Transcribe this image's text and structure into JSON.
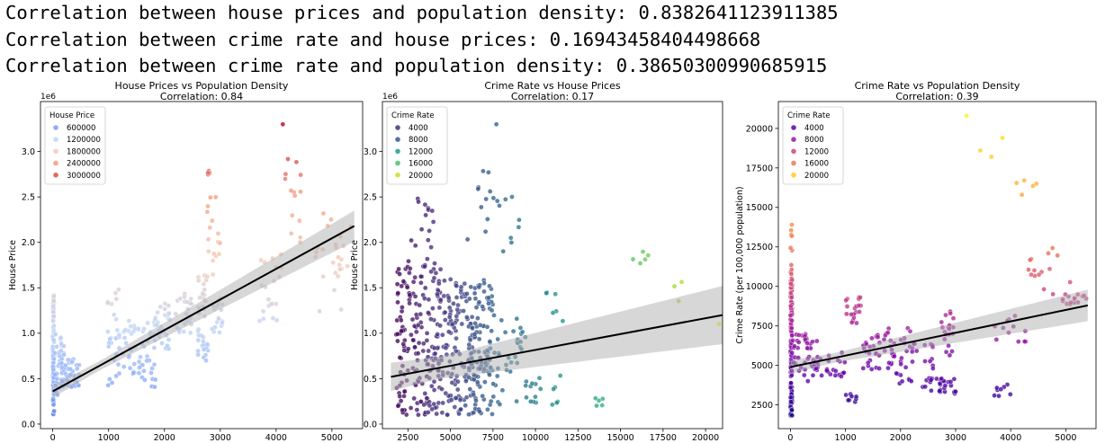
{
  "output_lines": [
    "Correlation between house prices and population density: 0.8382641123911385",
    "Correlation between crime rate and house prices: 0.16943458404498668",
    "Correlation between crime rate and population density: 0.38650300990685915"
  ],
  "chart_data": [
    {
      "type": "scatter",
      "title": "House Prices vs Population Density",
      "subtitle": "Correlation: 0.84",
      "xlabel": "",
      "ylabel": "House Price",
      "offset_text": "1e6",
      "xlim": [
        -220,
        5550
      ],
      "ylim": [
        -0.05,
        3.55
      ],
      "xticks": [
        0,
        1000,
        2000,
        3000,
        4000,
        5000
      ],
      "xtick_labels": [
        "0",
        "1000",
        "2000",
        "3000",
        "4000",
        "5000"
      ],
      "yticks": [
        0.0,
        0.5,
        1.0,
        1.5,
        2.0,
        2.5,
        3.0
      ],
      "ytick_labels": [
        "0.0",
        "0.5",
        "1.0",
        "1.5",
        "2.0",
        "2.5",
        "3.0"
      ],
      "hue_variable": "house_price",
      "palette": "coolwarm",
      "legend": {
        "title": "House Price",
        "position": "upper-left",
        "entries": [
          "600000",
          "1200000",
          "1800000",
          "2400000",
          "3000000"
        ],
        "colors": [
          "#7b9ff9",
          "#c0d4f5",
          "#f2cbb7",
          "#f49a7b",
          "#d65244"
        ]
      },
      "regression": {
        "x": [
          0,
          5400
        ],
        "y": [
          0.36,
          2.18
        ],
        "ci_halfwidth": [
          0.05,
          0.17
        ]
      },
      "clusters": [
        {
          "x": [
            0,
            25
          ],
          "y": [
            0.1,
            1.42
          ],
          "n": 130
        },
        {
          "x": [
            30,
            200
          ],
          "y": [
            0.32,
            1.0
          ],
          "n": 40
        },
        {
          "x": [
            150,
            500
          ],
          "y": [
            0.4,
            0.72
          ],
          "n": 40
        },
        {
          "x": [
            950,
            1200
          ],
          "y": [
            0.42,
            1.52
          ],
          "n": 30
        },
        {
          "x": [
            1250,
            1600
          ],
          "y": [
            0.55,
            1.15
          ],
          "n": 30
        },
        {
          "x": [
            1550,
            1850
          ],
          "y": [
            0.4,
            1.12
          ],
          "n": 30
        },
        {
          "x": [
            1800,
            2100
          ],
          "y": [
            0.8,
            1.35
          ],
          "n": 30
        },
        {
          "x": [
            2200,
            2500
          ],
          "y": [
            1.0,
            1.45
          ],
          "n": 25
        },
        {
          "x": [
            2600,
            2800
          ],
          "y": [
            0.7,
            1.7
          ],
          "n": 40
        },
        {
          "x": [
            2750,
            3000
          ],
          "y": [
            1.6,
            2.6
          ],
          "n": 18
        },
        {
          "x": [
            2750,
            2900
          ],
          "y": [
            2.6,
            2.85
          ],
          "n": 4
        },
        {
          "x": [
            2850,
            3050
          ],
          "y": [
            1.0,
            1.4
          ],
          "n": 20
        },
        {
          "x": [
            3700,
            4100
          ],
          "y": [
            1.1,
            1.9
          ],
          "n": 20
        },
        {
          "x": [
            4150,
            4450
          ],
          "y": [
            1.9,
            2.95
          ],
          "n": 14
        },
        {
          "x": [
            4700,
            5400
          ],
          "y": [
            1.2,
            2.35
          ],
          "n": 25
        }
      ],
      "points": [
        [
          4120,
          3.3
        ]
      ]
    },
    {
      "type": "scatter",
      "title": "Crime Rate vs House Prices",
      "subtitle": "Correlation: 0.17",
      "xlabel": "",
      "ylabel": "House Price",
      "offset_text": "1e6",
      "xlim": [
        1000,
        21000
      ],
      "ylim": [
        -0.05,
        3.55
      ],
      "xticks": [
        2500,
        5000,
        7500,
        10000,
        12500,
        15000,
        17500,
        20000
      ],
      "xtick_labels": [
        "2500",
        "5000",
        "7500",
        "10000",
        "12500",
        "15000",
        "17500",
        "20000"
      ],
      "yticks": [
        0.0,
        0.5,
        1.0,
        1.5,
        2.0,
        2.5,
        3.0
      ],
      "ytick_labels": [
        "0.0",
        "0.5",
        "1.0",
        "1.5",
        "2.0",
        "2.5",
        "3.0"
      ],
      "hue_variable": "crime_rate",
      "palette": "viridis",
      "legend": {
        "title": "Crime Rate",
        "position": "upper-left",
        "entries": [
          "4000",
          "8000",
          "12000",
          "16000",
          "20000"
        ],
        "colors": [
          "#46327e",
          "#365c8d",
          "#1fa187",
          "#4ac16d",
          "#c8e020"
        ]
      },
      "regression": {
        "x": [
          1500,
          21000
        ],
        "y": [
          0.52,
          1.2
        ],
        "ci_halfwidth": [
          0.12,
          0.32
        ]
      },
      "clusters": [
        {
          "x": [
            1800,
            4500
          ],
          "y": [
            0.1,
            1.8
          ],
          "n": 200
        },
        {
          "x": [
            2600,
            4000
          ],
          "y": [
            1.8,
            2.55
          ],
          "n": 15
        },
        {
          "x": [
            4500,
            7500
          ],
          "y": [
            0.1,
            1.6
          ],
          "n": 200
        },
        {
          "x": [
            6000,
            9500
          ],
          "y": [
            0.2,
            1.2
          ],
          "n": 70
        },
        {
          "x": [
            6000,
            7500
          ],
          "y": [
            1.9,
            2.9
          ],
          "n": 10
        },
        {
          "x": [
            7500,
            9500
          ],
          "y": [
            1.8,
            2.9
          ],
          "n": 10
        },
        {
          "x": [
            9500,
            11500
          ],
          "y": [
            0.2,
            0.6
          ],
          "n": 15
        },
        {
          "x": [
            10500,
            12000
          ],
          "y": [
            1.1,
            1.5
          ],
          "n": 6
        },
        {
          "x": [
            12000,
            14000
          ],
          "y": [
            0.2,
            0.3
          ],
          "n": 5
        },
        {
          "x": [
            15500,
            17000
          ],
          "y": [
            1.6,
            1.9
          ],
          "n": 5
        },
        {
          "x": [
            18000,
            19500
          ],
          "y": [
            1.25,
            1.65
          ],
          "n": 3
        }
      ],
      "points": [
        [
          7700,
          3.3
        ],
        [
          20800,
          1.1
        ]
      ]
    },
    {
      "type": "scatter",
      "title": "Crime Rate vs Population Density",
      "subtitle": "Correlation: 0.39",
      "xlabel": "",
      "ylabel": "Crime Rate (per 100,000 population)",
      "offset_text": "",
      "xlim": [
        -220,
        5550
      ],
      "ylim": [
        1000,
        21700
      ],
      "xticks": [
        0,
        1000,
        2000,
        3000,
        4000,
        5000
      ],
      "xtick_labels": [
        "0",
        "1000",
        "2000",
        "3000",
        "4000",
        "5000"
      ],
      "yticks": [
        2500,
        5000,
        7500,
        10000,
        12500,
        15000,
        17500,
        20000
      ],
      "ytick_labels": [
        "2500",
        "5000",
        "7500",
        "10000",
        "12500",
        "15000",
        "17500",
        "20000"
      ],
      "hue_variable": "crime_rate",
      "palette": "plasma",
      "legend": {
        "title": "Crime Rate",
        "position": "upper-left",
        "entries": [
          "4000",
          "8000",
          "12000",
          "16000",
          "20000"
        ],
        "colors": [
          "#5c01a6",
          "#9c179e",
          "#cc4778",
          "#ed7953",
          "#fdca26"
        ]
      },
      "regression": {
        "x": [
          0,
          5400
        ],
        "y": [
          4900,
          8800
        ],
        "ci_halfwidth": [
          300,
          1000
        ]
      },
      "clusters": [
        {
          "x": [
            0,
            30
          ],
          "y": [
            1800,
            10500
          ],
          "n": 140
        },
        {
          "x": [
            0,
            30
          ],
          "y": [
            10500,
            14000
          ],
          "n": 10
        },
        {
          "x": [
            30,
            500
          ],
          "y": [
            4000,
            7000
          ],
          "n": 50
        },
        {
          "x": [
            500,
            1000
          ],
          "y": [
            4200,
            6000
          ],
          "n": 20
        },
        {
          "x": [
            1000,
            1300
          ],
          "y": [
            7500,
            9500
          ],
          "n": 20
        },
        {
          "x": [
            1000,
            1200
          ],
          "y": [
            2500,
            3200
          ],
          "n": 8
        },
        {
          "x": [
            1300,
            1600
          ],
          "y": [
            4500,
            7000
          ],
          "n": 20
        },
        {
          "x": [
            1600,
            2200
          ],
          "y": [
            3800,
            7500
          ],
          "n": 40
        },
        {
          "x": [
            2200,
            2600
          ],
          "y": [
            4800,
            6500
          ],
          "n": 15
        },
        {
          "x": [
            2400,
            3000
          ],
          "y": [
            3200,
            4200
          ],
          "n": 30
        },
        {
          "x": [
            2700,
            3000
          ],
          "y": [
            5500,
            8500
          ],
          "n": 20
        },
        {
          "x": [
            3700,
            4000
          ],
          "y": [
            3000,
            4000
          ],
          "n": 8
        },
        {
          "x": [
            3700,
            4300
          ],
          "y": [
            6500,
            8800
          ],
          "n": 12
        },
        {
          "x": [
            4300,
            5100
          ],
          "y": [
            9500,
            12500
          ],
          "n": 15
        },
        {
          "x": [
            4900,
            5400
          ],
          "y": [
            8500,
            9500
          ],
          "n": 15
        },
        {
          "x": [
            4000,
            4600
          ],
          "y": [
            15700,
            17000
          ],
          "n": 5
        }
      ],
      "points": [
        [
          3200,
          20800
        ],
        [
          3450,
          18600
        ],
        [
          3650,
          18200
        ],
        [
          3850,
          19400
        ]
      ]
    }
  ]
}
